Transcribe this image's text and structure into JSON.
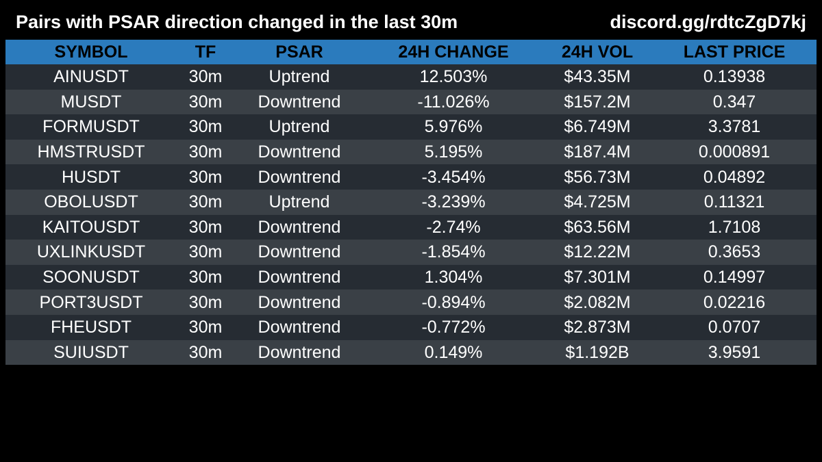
{
  "header": {
    "title": "Pairs with PSAR direction changed in the last 30m",
    "link": "discord.gg/rdtcZgD7kj"
  },
  "colors": {
    "background": "#000000",
    "header_row": "#2b7bbd",
    "row_dark": "#262c33",
    "row_light": "#3a4046",
    "text": "#ffffff",
    "header_text": "#000000"
  },
  "table": {
    "columns": [
      "SYMBOL",
      "TF",
      "PSAR",
      "24H CHANGE",
      "24H VOL",
      "LAST PRICE"
    ],
    "rows": [
      [
        "AINUSDT",
        "30m",
        "Uptrend",
        "12.503%",
        "$43.35M",
        "0.13938"
      ],
      [
        "MUSDT",
        "30m",
        "Downtrend",
        "-11.026%",
        "$157.2M",
        "0.347"
      ],
      [
        "FORMUSDT",
        "30m",
        "Uptrend",
        "5.976%",
        "$6.749M",
        "3.3781"
      ],
      [
        "HMSTRUSDT",
        "30m",
        "Downtrend",
        "5.195%",
        "$187.4M",
        "0.000891"
      ],
      [
        "HUSDT",
        "30m",
        "Downtrend",
        "-3.454%",
        "$56.73M",
        "0.04892"
      ],
      [
        "OBOLUSDT",
        "30m",
        "Uptrend",
        "-3.239%",
        "$4.725M",
        "0.11321"
      ],
      [
        "KAITOUSDT",
        "30m",
        "Downtrend",
        "-2.74%",
        "$63.56M",
        "1.7108"
      ],
      [
        "UXLINKUSDT",
        "30m",
        "Downtrend",
        "-1.854%",
        "$12.22M",
        "0.3653"
      ],
      [
        "SOONUSDT",
        "30m",
        "Downtrend",
        "1.304%",
        "$7.301M",
        "0.14997"
      ],
      [
        "PORT3USDT",
        "30m",
        "Downtrend",
        "-0.894%",
        "$2.082M",
        "0.02216"
      ],
      [
        "FHEUSDT",
        "30m",
        "Downtrend",
        "-0.772%",
        "$2.873M",
        "0.0707"
      ],
      [
        "SUIUSDT",
        "30m",
        "Downtrend",
        "0.149%",
        "$1.192B",
        "3.9591"
      ]
    ]
  }
}
